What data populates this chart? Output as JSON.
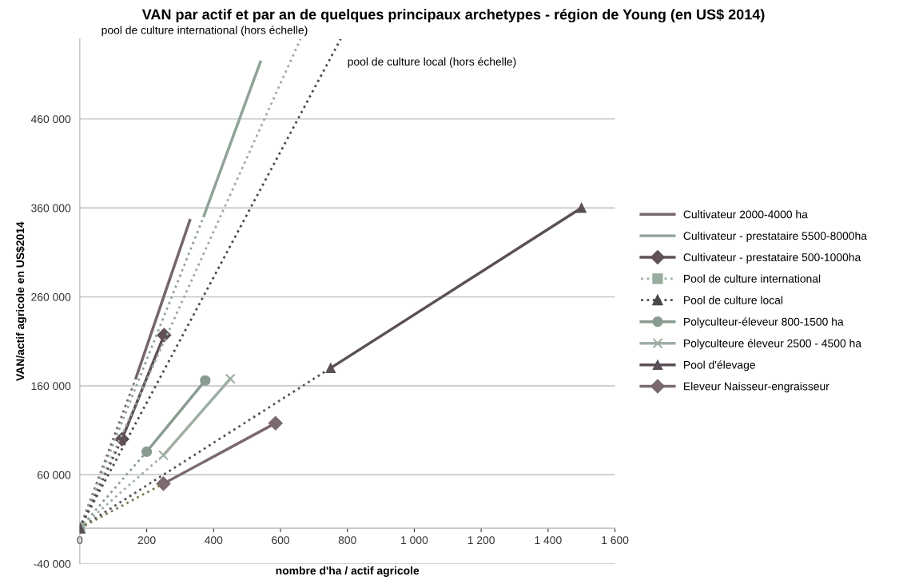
{
  "chart_data": {
    "type": "line",
    "title": "VAN par actif et par an de quelques principaux archetypes - région de Young (en US$ 2014)",
    "xlabel": "nombre d'ha / actif agricole",
    "ylabel": "VAN/actif agricole en US$2014",
    "annotations": [
      "pool de culture international (hors échelle)",
      "pool de culture local (hors échelle)"
    ],
    "xlim": [
      0,
      1600
    ],
    "xticks": [
      0,
      200,
      400,
      600,
      800,
      {
        "value": 1000,
        "label": "1 000"
      },
      {
        "value": 1200,
        "label": "1 200"
      },
      {
        "value": 1400,
        "label": "1 400"
      },
      {
        "value": 1600,
        "label": "1 600"
      }
    ],
    "ylim": [
      -40000,
      550000
    ],
    "yticks": [
      {
        "value": -40000,
        "label": "-40 000"
      },
      {
        "value": 60000,
        "label": "60 000"
      },
      {
        "value": 160000,
        "label": "160 000"
      },
      {
        "value": 260000,
        "label": "260 000"
      },
      {
        "value": 360000,
        "label": "360 000"
      },
      {
        "value": 460000,
        "label": "460 000"
      }
    ],
    "grid": "y",
    "legend": "right",
    "series": [
      {
        "name": "Cultivateur 2000-4000 ha",
        "color": "#76676c",
        "x": [
          168,
          329
        ],
        "values": [
          169000,
          346000
        ],
        "marker": "none",
        "line_style": "solid"
      },
      {
        "name": "Cultivateur - prestataire 5500-8000ha",
        "color": "#8fa396",
        "x": [
          371,
          540
        ],
        "values": [
          351000,
          524000
        ],
        "marker": "none",
        "line_style": "solid"
      },
      {
        "name": "Cultivateur - prestataire 500-1000ha",
        "color": "#5f5157",
        "x": [
          126,
          252
        ],
        "values": [
          100000,
          217000
        ],
        "marker": "diamond",
        "line_style": "solid"
      },
      {
        "name": "Pool de culture international",
        "color": "#9aab9f",
        "x": [
          0
        ],
        "values": [
          0
        ],
        "marker": "square",
        "line_style": "dotted"
      },
      {
        "name": "Pool de culture local",
        "color": "#4a4a4a",
        "x": [
          0
        ],
        "values": [
          0
        ],
        "marker": "triangle",
        "line_style": "dotted"
      },
      {
        "name": "Polyculteur-éleveur 800-1500 ha",
        "color": "#8a9c90",
        "x": [
          200,
          375
        ],
        "values": [
          86000,
          166000
        ],
        "marker": "circle",
        "line_style": "solid"
      },
      {
        "name": "Polyculteure éleveur 2500 - 4500 ha",
        "color": "#9eaea3",
        "x": [
          250,
          450
        ],
        "values": [
          82000,
          168000
        ],
        "marker": "cross",
        "line_style": "solid"
      },
      {
        "name": "Pool d'élevage",
        "color": "#5b5057",
        "x": [
          0,
          750,
          1500
        ],
        "values": [
          0,
          180000,
          360000
        ],
        "marker": "triangle",
        "line_style": [
          "dotted",
          "solid"
        ]
      },
      {
        "name": "Eleveur Naisseur-engraisseur",
        "color": "#7a6a70",
        "x": [
          250,
          585
        ],
        "values": [
          50000,
          118000
        ],
        "marker": "diamond",
        "line_style": "solid"
      },
      {
        "color": "#9aab9f",
        "x": [
          0,
          660
        ],
        "values": [
          0,
          550000
        ],
        "marker": "none",
        "line_style": "dotted"
      },
      {
        "color": "#4a4a4a",
        "x": [
          0,
          780
        ],
        "values": [
          0,
          550000
        ],
        "marker": "none",
        "line_style": "dotted"
      },
      {
        "color": "#76676c",
        "x": [
          0,
          168
        ],
        "values": [
          0,
          169000
        ],
        "marker": "none",
        "line_style": "dotted"
      },
      {
        "color": "#8fa396",
        "x": [
          0,
          371
        ],
        "values": [
          0,
          351000
        ],
        "marker": "none",
        "line_style": "dotted"
      },
      {
        "color": "#5f5157",
        "x": [
          0,
          126
        ],
        "values": [
          0,
          100000
        ],
        "marker": "none",
        "line_style": "dotted"
      },
      {
        "color": "#8a9c90",
        "x": [
          0,
          200
        ],
        "values": [
          0,
          86000
        ],
        "marker": "none",
        "line_style": "dotted"
      },
      {
        "color": "#9eaea3",
        "x": [
          0,
          250
        ],
        "values": [
          0,
          82000
        ],
        "marker": "none",
        "line_style": "dotted"
      },
      {
        "color": "#7d7a5a",
        "x": [
          0,
          250
        ],
        "values": [
          0,
          50000
        ],
        "marker": "none",
        "line_style": "dotted"
      }
    ]
  }
}
